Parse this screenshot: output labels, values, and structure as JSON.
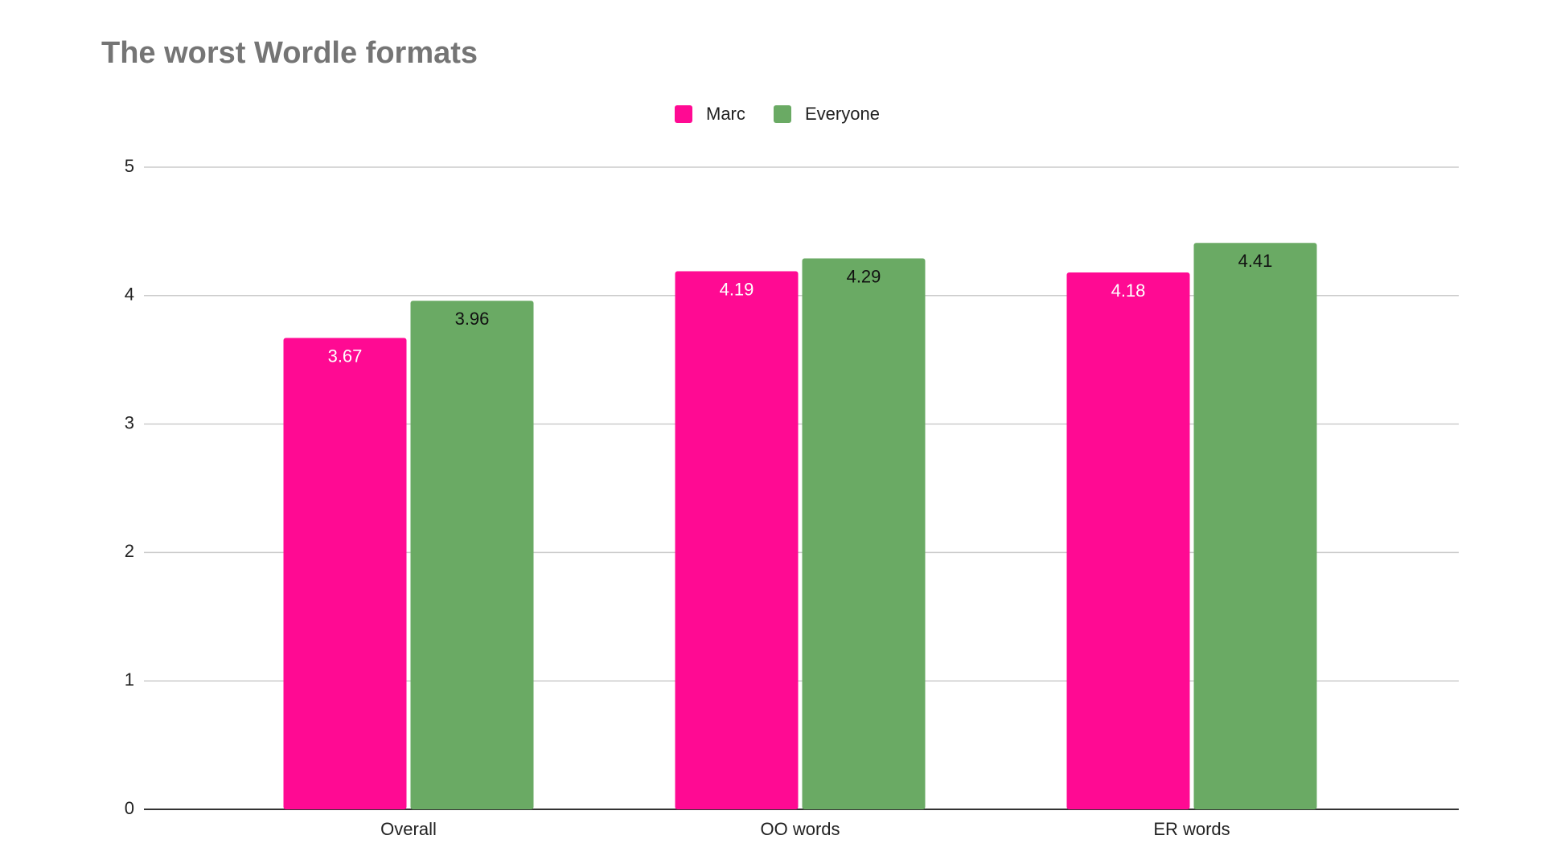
{
  "chart_data": {
    "type": "bar",
    "title": "The worst Wordle formats",
    "categories": [
      "Overall",
      "OO words",
      "ER words"
    ],
    "series": [
      {
        "name": "Marc",
        "color": "#ff0a93",
        "values": [
          3.67,
          4.19,
          4.18
        ]
      },
      {
        "name": "Everyone",
        "color": "#6aaa64",
        "values": [
          3.96,
          4.29,
          4.41
        ]
      }
    ],
    "ylim": [
      0,
      5
    ],
    "yticks": [
      0,
      1,
      2,
      3,
      4,
      5
    ],
    "grid": true,
    "legend": "top"
  }
}
